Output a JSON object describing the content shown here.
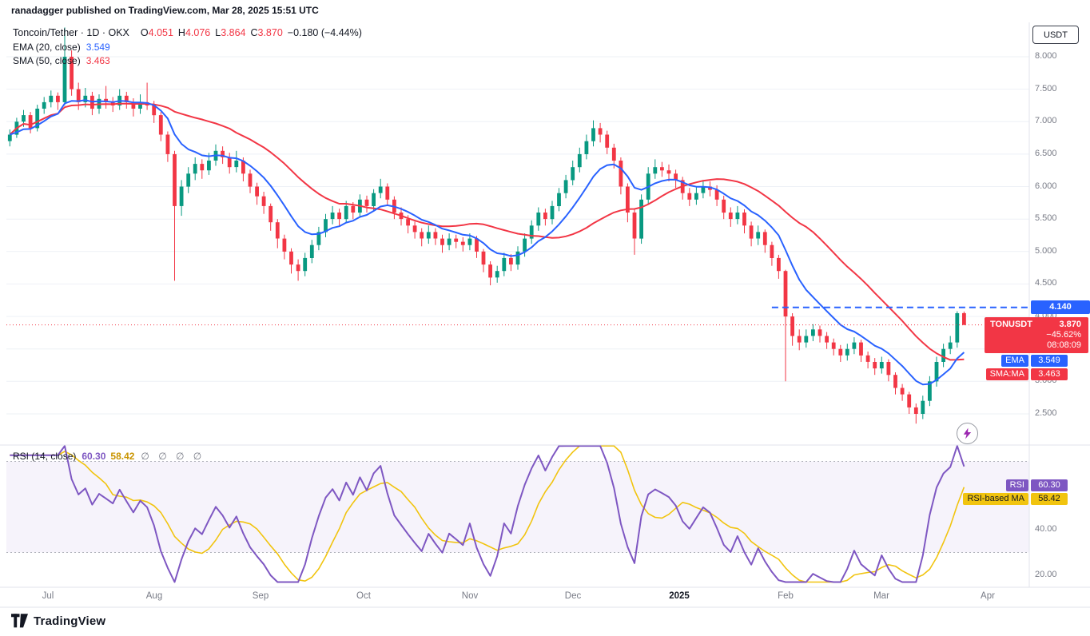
{
  "header": {
    "publish_line": "ranadagger published on TradingView.com, Mar 28, 2025 15:51 UTC"
  },
  "legend": {
    "symbol_title": "Toncoin/Tether · 1D · OKX",
    "ohlc": {
      "o_label": "O",
      "o": "4.051",
      "h_label": "H",
      "h": "4.076",
      "l_label": "L",
      "l": "3.864",
      "c_label": "C",
      "c": "3.870",
      "change": "−0.180 (−4.44%)"
    },
    "ema_label": "EMA (20, close)",
    "ema_value": "3.549",
    "sma_label": "SMA (50, close)",
    "sma_value": "3.463"
  },
  "axis": {
    "currency": "USDT"
  },
  "labels": {
    "alert_price": "4.140",
    "symbol_badge": {
      "name": "TONUSDT",
      "price": "3.870",
      "change": "−45.62%",
      "countdown": "08:08:09"
    },
    "ema_badge_name": "EMA",
    "ema_badge_value": "3.549",
    "sma_badge_name": "SMA:MA",
    "sma_badge_value": "3.463"
  },
  "rsi_panel": {
    "legend_label": "RSI (14, close)",
    "value": "60.30",
    "ma_value": "58.42",
    "circles": "∅ ∅ ∅ ∅",
    "badge_name": "RSI",
    "ma_badge_name": "RSI-based MA"
  },
  "footer": {
    "brand": "TradingView"
  },
  "chart_data": {
    "type": "candlestick",
    "title": "Toncoin/Tether",
    "exchange": "OKX",
    "interval": "1D",
    "quote_currency": "USDT",
    "start_date": "2024-06-20",
    "step_days": 2,
    "total_slots": 149,
    "colors": {
      "up": "#089981",
      "down": "#f23645",
      "ema": "#2962ff",
      "sma": "#f23645",
      "rsi": "#7e57c2",
      "rsi_ma": "#f1c40f",
      "alert": "#2962ff",
      "grid": "#eef1f6",
      "border": "#e0e3eb",
      "axis_text": "#787b86"
    },
    "price_axis": {
      "min": 2.2,
      "max": 8.5,
      "ticks": [
        8.0,
        7.5,
        7.0,
        6.5,
        6.0,
        5.5,
        5.0,
        4.5,
        4.0,
        3.5,
        3.0,
        2.5
      ]
    },
    "x_ticks": [
      {
        "label": "Jul",
        "i": 5.5
      },
      {
        "label": "Aug",
        "i": 21
      },
      {
        "label": "Sep",
        "i": 36.5
      },
      {
        "label": "Oct",
        "i": 51.5
      },
      {
        "label": "Nov",
        "i": 67
      },
      {
        "label": "Dec",
        "i": 82
      },
      {
        "label": "2025",
        "i": 97.5
      },
      {
        "label": "Feb",
        "i": 113
      },
      {
        "label": "Mar",
        "i": 127
      },
      {
        "label": "Apr",
        "i": 142.5
      }
    ],
    "candles": [
      [
        6.7,
        6.88,
        6.62,
        6.8
      ],
      [
        6.8,
        7.06,
        6.75,
        7.0
      ],
      [
        7.0,
        7.18,
        6.92,
        7.1
      ],
      [
        7.1,
        7.15,
        6.82,
        6.9
      ],
      [
        6.9,
        7.26,
        6.85,
        7.2
      ],
      [
        7.2,
        7.38,
        7.12,
        7.3
      ],
      [
        7.3,
        7.48,
        7.22,
        7.4
      ],
      [
        7.4,
        7.45,
        7.18,
        7.3
      ],
      [
        7.3,
        8.45,
        7.25,
        8.0
      ],
      [
        8.0,
        8.1,
        7.4,
        7.5
      ],
      [
        7.5,
        7.6,
        7.18,
        7.3
      ],
      [
        7.3,
        7.52,
        7.22,
        7.4
      ],
      [
        7.4,
        7.46,
        7.1,
        7.2
      ],
      [
        7.2,
        7.42,
        7.12,
        7.35
      ],
      [
        7.35,
        7.55,
        7.2,
        7.3
      ],
      [
        7.3,
        7.38,
        7.15,
        7.25
      ],
      [
        7.25,
        7.5,
        7.18,
        7.4
      ],
      [
        7.4,
        7.46,
        7.2,
        7.3
      ],
      [
        7.3,
        7.36,
        7.08,
        7.2
      ],
      [
        7.2,
        7.42,
        7.12,
        7.3
      ],
      [
        7.3,
        7.6,
        7.18,
        7.25
      ],
      [
        7.25,
        7.32,
        6.98,
        7.1
      ],
      [
        7.1,
        7.15,
        6.7,
        6.8
      ],
      [
        6.8,
        6.85,
        6.38,
        6.5
      ],
      [
        6.5,
        6.55,
        4.55,
        5.7
      ],
      [
        5.7,
        6.1,
        5.55,
        6.0
      ],
      [
        6.0,
        6.3,
        5.9,
        6.2
      ],
      [
        6.2,
        6.45,
        6.1,
        6.35
      ],
      [
        6.35,
        6.42,
        6.12,
        6.25
      ],
      [
        6.25,
        6.52,
        6.18,
        6.4
      ],
      [
        6.4,
        6.65,
        6.32,
        6.55
      ],
      [
        6.55,
        6.62,
        6.35,
        6.45
      ],
      [
        6.45,
        6.52,
        6.2,
        6.3
      ],
      [
        6.3,
        6.55,
        6.22,
        6.4
      ],
      [
        6.4,
        6.45,
        6.08,
        6.2
      ],
      [
        6.2,
        6.26,
        5.9,
        6.0
      ],
      [
        6.0,
        6.06,
        5.72,
        5.85
      ],
      [
        5.85,
        5.92,
        5.58,
        5.7
      ],
      [
        5.7,
        5.74,
        5.32,
        5.45
      ],
      [
        5.45,
        5.5,
        5.05,
        5.2
      ],
      [
        5.2,
        5.26,
        4.88,
        5.0
      ],
      [
        5.0,
        5.05,
        4.66,
        4.8
      ],
      [
        4.8,
        4.88,
        4.55,
        4.7
      ],
      [
        4.7,
        4.98,
        4.62,
        4.9
      ],
      [
        4.9,
        5.18,
        4.82,
        5.1
      ],
      [
        5.1,
        5.38,
        5.02,
        5.3
      ],
      [
        5.3,
        5.58,
        5.22,
        5.5
      ],
      [
        5.5,
        5.7,
        5.42,
        5.6
      ],
      [
        5.6,
        5.66,
        5.4,
        5.5
      ],
      [
        5.5,
        5.78,
        5.44,
        5.7
      ],
      [
        5.7,
        5.76,
        5.5,
        5.6
      ],
      [
        5.6,
        5.88,
        5.52,
        5.8
      ],
      [
        5.8,
        5.86,
        5.6,
        5.7
      ],
      [
        5.7,
        5.96,
        5.62,
        5.9
      ],
      [
        5.9,
        6.12,
        5.82,
        6.0
      ],
      [
        6.0,
        6.05,
        5.7,
        5.8
      ],
      [
        5.8,
        5.85,
        5.5,
        5.6
      ],
      [
        5.6,
        5.68,
        5.4,
        5.5
      ],
      [
        5.5,
        5.56,
        5.28,
        5.4
      ],
      [
        5.4,
        5.46,
        5.2,
        5.3
      ],
      [
        5.3,
        5.36,
        5.08,
        5.2
      ],
      [
        5.2,
        5.4,
        5.12,
        5.3
      ],
      [
        5.3,
        5.36,
        5.1,
        5.2
      ],
      [
        5.2,
        5.26,
        4.98,
        5.1
      ],
      [
        5.1,
        5.28,
        5.02,
        5.2
      ],
      [
        5.2,
        5.26,
        5.05,
        5.15
      ],
      [
        5.15,
        5.22,
        5.0,
        5.1
      ],
      [
        5.1,
        5.28,
        5.02,
        5.2
      ],
      [
        5.2,
        5.24,
        4.9,
        5.0
      ],
      [
        5.0,
        5.04,
        4.68,
        4.8
      ],
      [
        4.8,
        4.85,
        4.48,
        4.6
      ],
      [
        4.6,
        4.78,
        4.52,
        4.7
      ],
      [
        4.7,
        4.98,
        4.62,
        4.9
      ],
      [
        4.9,
        4.96,
        4.7,
        4.8
      ],
      [
        4.8,
        5.08,
        4.72,
        5.0
      ],
      [
        5.0,
        5.28,
        4.92,
        5.2
      ],
      [
        5.2,
        5.48,
        5.12,
        5.4
      ],
      [
        5.4,
        5.68,
        5.32,
        5.6
      ],
      [
        5.6,
        5.66,
        5.4,
        5.5
      ],
      [
        5.5,
        5.78,
        5.42,
        5.7
      ],
      [
        5.7,
        5.98,
        5.62,
        5.9
      ],
      [
        5.9,
        6.18,
        5.82,
        6.1
      ],
      [
        6.1,
        6.4,
        6.02,
        6.3
      ],
      [
        6.3,
        6.6,
        6.22,
        6.5
      ],
      [
        6.5,
        6.8,
        6.42,
        6.7
      ],
      [
        6.7,
        7.02,
        6.62,
        6.9
      ],
      [
        6.9,
        6.98,
        6.68,
        6.8
      ],
      [
        6.8,
        6.86,
        6.5,
        6.6
      ],
      [
        6.6,
        6.66,
        6.28,
        6.4
      ],
      [
        6.4,
        6.45,
        5.88,
        6.0
      ],
      [
        6.0,
        6.05,
        5.45,
        5.6
      ],
      [
        5.6,
        5.65,
        4.95,
        5.2
      ],
      [
        5.2,
        5.88,
        5.12,
        5.8
      ],
      [
        5.8,
        6.3,
        5.72,
        6.2
      ],
      [
        6.2,
        6.42,
        6.12,
        6.3
      ],
      [
        6.3,
        6.38,
        6.15,
        6.25
      ],
      [
        6.25,
        6.34,
        6.08,
        6.2
      ],
      [
        6.2,
        6.26,
        5.98,
        6.1
      ],
      [
        6.1,
        6.15,
        5.8,
        5.9
      ],
      [
        5.9,
        5.98,
        5.7,
        5.8
      ],
      [
        5.8,
        6.0,
        5.72,
        5.9
      ],
      [
        5.9,
        6.1,
        5.82,
        6.0
      ],
      [
        6.0,
        6.08,
        5.85,
        5.95
      ],
      [
        5.95,
        6.02,
        5.7,
        5.8
      ],
      [
        5.8,
        5.86,
        5.5,
        5.6
      ],
      [
        5.6,
        5.68,
        5.38,
        5.5
      ],
      [
        5.5,
        5.7,
        5.42,
        5.6
      ],
      [
        5.6,
        5.65,
        5.28,
        5.4
      ],
      [
        5.4,
        5.46,
        5.08,
        5.2
      ],
      [
        5.2,
        5.4,
        5.1,
        5.3
      ],
      [
        5.3,
        5.34,
        4.98,
        5.1
      ],
      [
        5.1,
        5.15,
        4.78,
        4.9
      ],
      [
        4.9,
        4.95,
        4.58,
        4.7
      ],
      [
        4.7,
        4.72,
        3.0,
        4.0
      ],
      [
        4.0,
        4.05,
        3.55,
        3.7
      ],
      [
        3.7,
        3.8,
        3.48,
        3.6
      ],
      [
        3.6,
        3.8,
        3.52,
        3.7
      ],
      [
        3.7,
        3.88,
        3.62,
        3.8
      ],
      [
        3.8,
        3.86,
        3.6,
        3.7
      ],
      [
        3.7,
        3.76,
        3.5,
        3.6
      ],
      [
        3.6,
        3.66,
        3.4,
        3.5
      ],
      [
        3.5,
        3.56,
        3.3,
        3.4
      ],
      [
        3.4,
        3.58,
        3.32,
        3.5
      ],
      [
        3.5,
        3.68,
        3.42,
        3.6
      ],
      [
        3.6,
        3.64,
        3.3,
        3.4
      ],
      [
        3.4,
        3.46,
        3.2,
        3.3
      ],
      [
        3.3,
        3.36,
        3.1,
        3.2
      ],
      [
        3.2,
        3.38,
        3.12,
        3.3
      ],
      [
        3.3,
        3.34,
        3.0,
        3.1
      ],
      [
        3.1,
        3.14,
        2.8,
        2.9
      ],
      [
        2.9,
        2.96,
        2.7,
        2.8
      ],
      [
        2.8,
        2.84,
        2.5,
        2.6
      ],
      [
        2.6,
        2.66,
        2.35,
        2.5
      ],
      [
        2.5,
        2.78,
        2.42,
        2.7
      ],
      [
        2.7,
        3.08,
        2.62,
        3.0
      ],
      [
        3.0,
        3.38,
        2.92,
        3.3
      ],
      [
        3.3,
        3.58,
        3.22,
        3.5
      ],
      [
        3.5,
        3.7,
        3.42,
        3.6
      ],
      [
        3.6,
        4.08,
        3.52,
        4.05
      ],
      [
        4.051,
        4.076,
        3.864,
        3.87
      ]
    ],
    "overlays": [
      {
        "name": "EMA",
        "display_period": 20,
        "calc_period": 10,
        "color": "#2962ff",
        "last_value": 3.549
      },
      {
        "name": "SMA",
        "display_period": 50,
        "calc_period": 25,
        "color": "#f23645",
        "last_value": 3.463
      }
    ],
    "alert_line": {
      "price": 4.14,
      "color": "#2962ff",
      "style": "dashed",
      "start_index": 111
    },
    "last_price_line": {
      "price": 3.87,
      "color": "#f23645",
      "style": "dotted"
    },
    "rsi": {
      "display_period": 14,
      "calc_period": 7,
      "ma_period": 7,
      "last_value": 60.3,
      "ma_last_value": 58.42,
      "upper_band": 70,
      "lower_band": 30,
      "axis_ticks": [
        40,
        20
      ]
    }
  }
}
